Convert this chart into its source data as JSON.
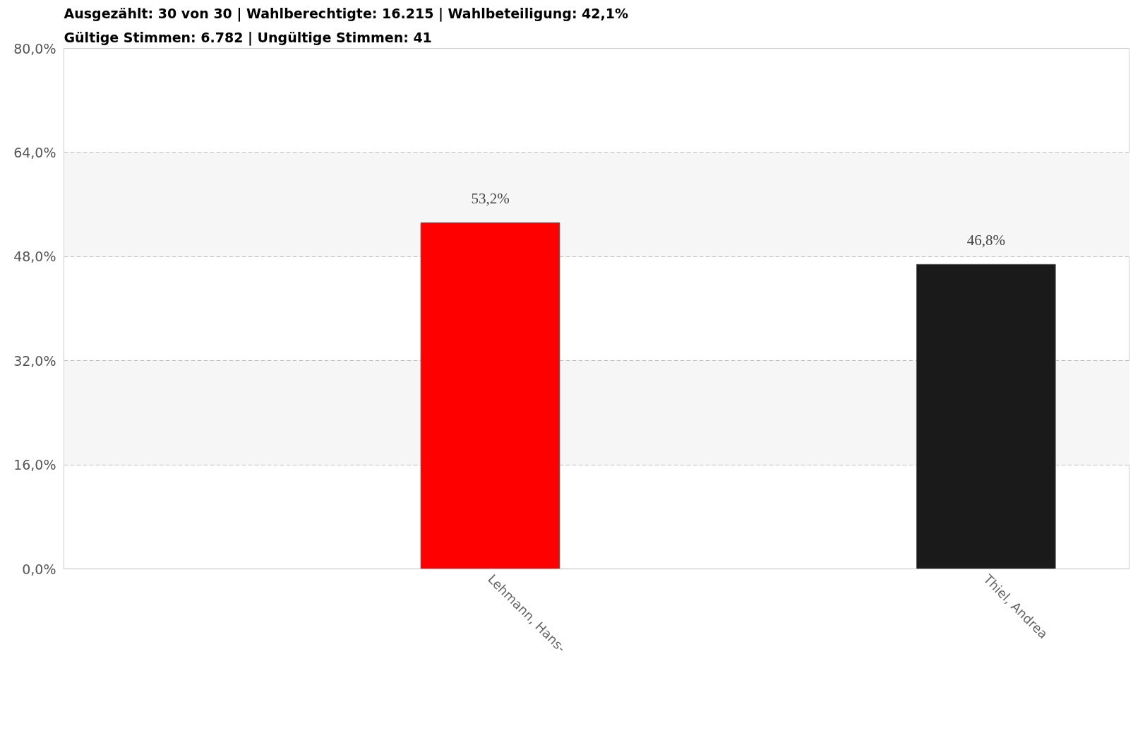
{
  "chart_data": {
    "type": "bar",
    "title": "Ausgezählt:  30 von 30 | Wahlberechtigte:  16.215 | Wahlbeteiligung: 42,1%",
    "subtitle": "Gültige Stimmen: 6.782 | Ungültige Stimmen: 41",
    "categories": [
      "Lehmann, Hans-",
      "Thiel, Andrea"
    ],
    "values": [
      53.2,
      46.8
    ],
    "colors": [
      "#ff0000",
      "#1a1a1a"
    ],
    "value_labels": [
      "53,2%",
      "46,8%"
    ],
    "ylim": [
      0,
      80
    ],
    "yticks": [
      {
        "value": 0,
        "label": "0,0%"
      },
      {
        "value": 16,
        "label": "16,0%"
      },
      {
        "value": 32,
        "label": "32,0%"
      },
      {
        "value": 48,
        "label": "48,0%"
      },
      {
        "value": 64,
        "label": "64,0%"
      },
      {
        "value": 80,
        "label": "80,0%"
      }
    ],
    "grid": "y"
  }
}
